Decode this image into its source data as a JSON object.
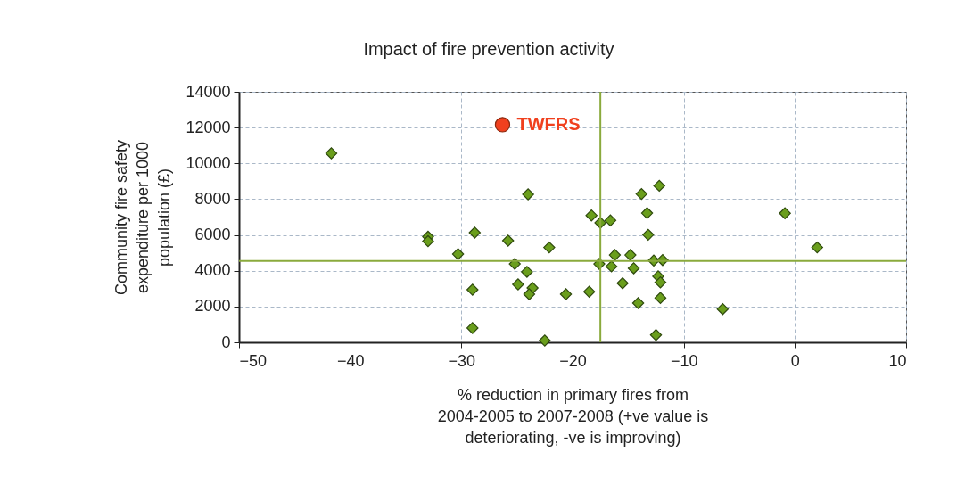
{
  "chart_data": {
    "type": "scatter",
    "title": "Impact of fire prevention activity",
    "xlabel": "% reduction in primary fires from 2004-2005 to 2007-2008 (+ve value is deteriorating, -ve is improving)",
    "ylabel": "Community fire safety expenditure per 1000 population (£)",
    "xlim": [
      -50,
      10
    ],
    "xticks": [
      -50,
      -40,
      -30,
      -20,
      -10,
      0,
      10
    ],
    "ylim": [
      0,
      14000
    ],
    "yticks": [
      0,
      2000,
      4000,
      6000,
      8000,
      10000,
      12000,
      14000
    ],
    "grid": true,
    "marker": "diamond",
    "series": [
      {
        "color": "#6a9e1c",
        "x": [
          -41.7,
          -33,
          -33,
          -30.3,
          -28.8,
          -29,
          -29,
          -25.8,
          -25.2,
          -24.9,
          -24.1,
          -24,
          -23.6,
          -23.9,
          -22.1,
          -22.5,
          -20.6,
          -18.5,
          -18.3,
          -17.5,
          -16.6,
          -17.6,
          -16.5,
          -16.2,
          -15.5,
          -14.8,
          -14.5,
          -14.1,
          -13.8,
          -13.3,
          -13.2,
          -12.7,
          -11.9,
          -12.2,
          -12.3,
          -12.1,
          -12.1,
          -12.5,
          -6.5,
          -0.9,
          2
        ],
        "values": [
          10560,
          5900,
          5650,
          4930,
          6130,
          2940,
          800,
          5680,
          4380,
          3240,
          3940,
          8270,
          3040,
          2690,
          5300,
          100,
          2690,
          2830,
          7090,
          6680,
          6810,
          4380,
          4240,
          4880,
          3300,
          4880,
          4140,
          2190,
          8290,
          7220,
          6010,
          4570,
          4600,
          8750,
          3690,
          3350,
          2480,
          410,
          1860,
          7210,
          5300
        ]
      },
      {
        "name": "TWFRS",
        "color": "#f0401e",
        "marker": "circle",
        "x": [
          -26.3
        ],
        "values": [
          12160
        ]
      }
    ],
    "ref_lines": [
      {
        "axis": "x",
        "value": -17.5,
        "color": "#8aaa3c"
      },
      {
        "axis": "y",
        "value": 4550,
        "color": "#8aaa3c"
      }
    ]
  }
}
